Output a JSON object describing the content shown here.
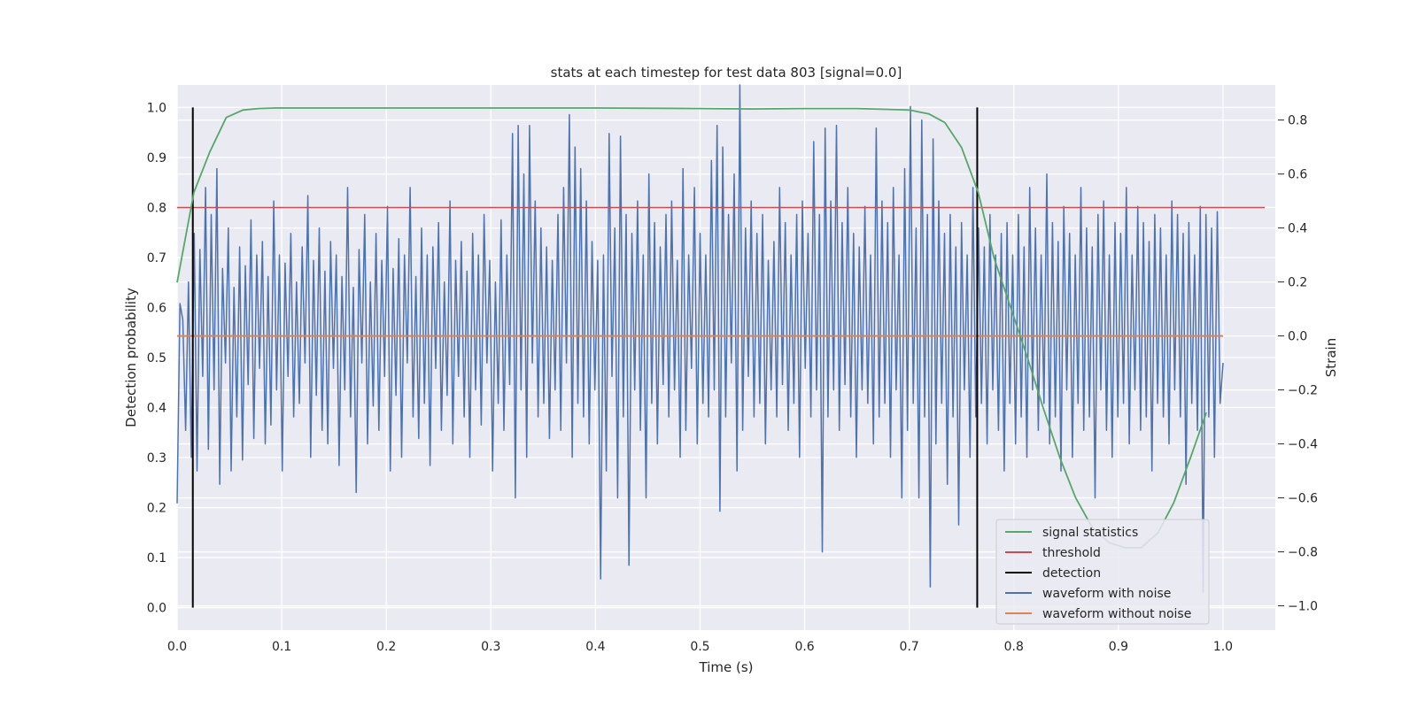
{
  "chart_data": {
    "type": "line",
    "title": "stats at each timestep for test data 803 [signal=0.0]",
    "xlabel": "Time (s)",
    "ylabel_left": "Detection probability",
    "ylabel_right": "Strain",
    "xlim": [
      0.0,
      1.05
    ],
    "ylim_left": [
      -0.045,
      1.045
    ],
    "ylim_right": [
      -1.09,
      0.93
    ],
    "x_ticks": [
      "0.0",
      "0.1",
      "0.2",
      "0.3",
      "0.4",
      "0.5",
      "0.6",
      "0.7",
      "0.8",
      "0.9",
      "1.0"
    ],
    "y_left_ticks": [
      "0.0",
      "0.1",
      "0.2",
      "0.3",
      "0.4",
      "0.5",
      "0.6",
      "0.7",
      "0.8",
      "0.9",
      "1.0"
    ],
    "y_right_ticks": [
      "−1.0",
      "−0.8",
      "−0.6",
      "−0.4",
      "−0.2",
      "0.0",
      "0.2",
      "0.4",
      "0.6",
      "0.8"
    ],
    "grid": true,
    "background": "#eaeaf2",
    "legend_position": "lower-right",
    "series": [
      {
        "name": "signal statistics",
        "axis": "left",
        "color": "#55a868",
        "x": [
          0.0,
          0.016,
          0.031,
          0.047,
          0.063,
          0.078,
          0.094,
          0.2,
          0.3,
          0.4,
          0.5,
          0.55,
          0.6,
          0.65,
          0.7,
          0.719,
          0.734,
          0.75,
          0.766,
          0.781,
          0.797,
          0.813,
          0.828,
          0.844,
          0.859,
          0.875,
          0.891,
          0.906,
          0.922,
          0.938,
          0.953,
          0.969,
          0.984
        ],
        "y": [
          0.65,
          0.83,
          0.91,
          0.98,
          0.995,
          0.998,
          0.999,
          0.999,
          0.999,
          0.999,
          0.998,
          0.997,
          0.998,
          0.998,
          0.995,
          0.987,
          0.97,
          0.92,
          0.83,
          0.7,
          0.6,
          0.5,
          0.4,
          0.3,
          0.22,
          0.16,
          0.13,
          0.12,
          0.12,
          0.15,
          0.21,
          0.3,
          0.39
        ]
      },
      {
        "name": "threshold",
        "axis": "left",
        "color": "#c44e52",
        "x": [
          0.0,
          1.04
        ],
        "y": [
          0.8,
          0.8
        ]
      },
      {
        "name": "detection",
        "axis": "left",
        "color": "#000000",
        "vlines": [
          {
            "x": 0.015,
            "y": [
              0.0,
              1.0
            ]
          },
          {
            "x": 0.765,
            "y": [
              0.0,
              1.0
            ]
          }
        ]
      },
      {
        "name": "waveform with noise",
        "axis": "right",
        "color": "#4c72b0",
        "x_range": [
          0.0,
          1.0
        ],
        "y": [
          -0.62,
          0.12,
          0.06,
          -0.35,
          0.2,
          -0.45,
          0.38,
          -0.5,
          0.32,
          -0.15,
          0.55,
          -0.42,
          0.45,
          -0.2,
          0.62,
          -0.55,
          0.25,
          -0.1,
          0.4,
          -0.5,
          0.18,
          -0.3,
          0.33,
          -0.46,
          0.26,
          -0.18,
          0.43,
          -0.38,
          0.3,
          -0.12,
          0.35,
          -0.4,
          0.22,
          -0.33,
          0.5,
          -0.2,
          0.3,
          -0.5,
          0.27,
          -0.15,
          0.38,
          -0.3,
          0.2,
          -0.25,
          0.33,
          -0.1,
          0.52,
          -0.45,
          0.28,
          -0.22,
          0.4,
          -0.35,
          0.24,
          -0.4,
          0.35,
          -0.12,
          0.3,
          -0.48,
          0.22,
          -0.2,
          0.55,
          -0.3,
          0.18,
          -0.58,
          0.32,
          -0.1,
          0.45,
          -0.4,
          0.2,
          -0.26,
          0.38,
          -0.35,
          0.28,
          -0.15,
          0.48,
          -0.5,
          0.25,
          -0.22,
          0.36,
          -0.45,
          0.3,
          -0.1,
          0.55,
          -0.3,
          0.22,
          -0.38,
          0.4,
          -0.25,
          0.3,
          -0.48,
          0.33,
          -0.12,
          0.42,
          -0.35,
          0.2,
          -0.22,
          0.5,
          -0.4,
          0.28,
          -0.15,
          0.35,
          -0.3,
          0.24,
          -0.45,
          0.38,
          -0.2,
          0.3,
          -0.33,
          0.45,
          -0.1,
          0.28,
          -0.5,
          0.2,
          -0.25,
          0.43,
          -0.35,
          0.3,
          -0.18,
          0.75,
          -0.6,
          0.78,
          -0.2,
          0.6,
          -0.45,
          0.78,
          -0.1,
          0.5,
          -0.3,
          0.4,
          -0.25,
          0.33,
          -0.38,
          0.28,
          -0.2,
          0.45,
          -0.35,
          0.55,
          -0.1,
          0.82,
          -0.45,
          0.7,
          -0.25,
          0.62,
          -0.3,
          0.5,
          -0.4,
          0.35,
          -0.2,
          0.28,
          -0.9,
          0.3,
          -0.5,
          0.75,
          -0.15,
          0.4,
          -0.6,
          0.74,
          -0.3,
          0.45,
          -0.85,
          0.38,
          -0.2,
          0.5,
          -0.35,
          0.3,
          -0.6,
          0.6,
          -0.25,
          0.42,
          -0.4,
          0.33,
          -0.18,
          0.45,
          -0.3,
          0.5,
          -0.2,
          0.28,
          -0.45,
          0.62,
          -0.35,
          0.3,
          -0.12,
          0.55,
          -0.4,
          0.38,
          -0.25,
          0.3,
          -0.3,
          0.65,
          -0.2,
          0.78,
          -0.65,
          0.7,
          -0.3,
          0.45,
          -0.1,
          0.6,
          -0.5,
          0.93,
          -0.35,
          0.4,
          -0.15,
          0.5,
          -0.3,
          0.38,
          -0.25,
          0.45,
          -0.4,
          0.28,
          -0.2,
          0.35,
          -0.3,
          0.55,
          -0.18,
          0.42,
          -0.35,
          0.3,
          -0.25,
          0.45,
          -0.45,
          0.5,
          -0.12,
          0.38,
          -0.3,
          0.72,
          -0.2,
          0.45,
          -0.8,
          0.77,
          -0.3,
          0.5,
          -0.2,
          0.78,
          -0.35,
          0.42,
          -0.18,
          0.55,
          -0.3,
          0.38,
          -0.45,
          0.33,
          -0.2,
          0.48,
          -0.25,
          0.3,
          -0.4,
          0.77,
          -0.3,
          0.5,
          -0.25,
          0.42,
          -0.45,
          0.55,
          -0.2,
          0.3,
          -0.6,
          0.62,
          -0.35,
          0.85,
          -0.25,
          0.4,
          -0.6,
          0.8,
          -0.3,
          0.45,
          -0.93,
          0.73,
          -0.4,
          0.5,
          -0.25,
          0.38,
          -0.55,
          0.45,
          -0.3,
          0.33,
          -0.7,
          0.42,
          -0.2,
          0.3,
          -0.45,
          0.55,
          -0.3,
          0.4,
          -0.25,
          0.33,
          -0.4,
          0.45,
          -0.2,
          0.3,
          -0.35,
          0.38,
          -0.5,
          0.42,
          -0.25,
          0.3,
          -0.4,
          0.45,
          -0.3,
          0.33,
          -0.45,
          0.55,
          -0.2,
          0.4,
          -0.35,
          0.3,
          -0.25,
          0.6,
          -0.4,
          0.42,
          -0.3,
          0.35,
          -0.5,
          0.48,
          -0.2,
          0.38,
          -0.45,
          0.3,
          -0.25,
          0.55,
          -0.35,
          0.4,
          -0.3,
          0.33,
          -0.6,
          0.45,
          -0.2,
          0.5,
          -0.35,
          0.3,
          -0.45,
          0.42,
          -0.3,
          0.38,
          -0.25,
          0.55,
          -0.4,
          0.3,
          -0.2,
          0.48,
          -0.35,
          0.42,
          -0.3,
          0.35,
          -0.5,
          0.45,
          -0.25,
          0.4,
          -0.3,
          0.3,
          -0.4,
          0.5,
          -0.2,
          0.45,
          -0.3,
          0.38,
          -0.55,
          0.42,
          -0.25,
          0.3,
          -0.35,
          0.48,
          -0.95,
          0.45,
          -0.3,
          0.4,
          -0.45,
          0.46,
          -0.25,
          -0.1
        ]
      },
      {
        "name": "waveform without noise",
        "axis": "right",
        "color": "#dd8452",
        "x": [
          0.0,
          1.0
        ],
        "y": [
          0.0,
          0.0
        ]
      }
    ]
  }
}
